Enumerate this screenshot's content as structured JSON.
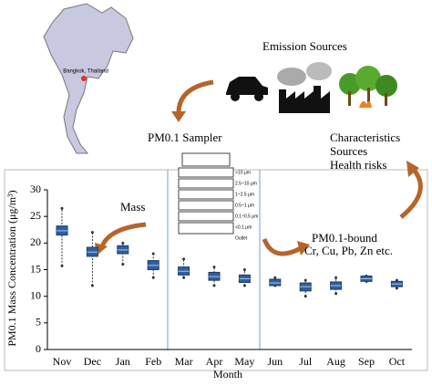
{
  "chart_data": {
    "type": "box",
    "map_label": "Bangkok, Thailand",
    "annotations": [
      "Emission Sources",
      "PM0.1 Sampler",
      "Characteristics",
      "Sources",
      "Health risks",
      "Mass",
      "PM0.1-bound",
      "Cr, Cu, Pb, Zn etc."
    ],
    "sampler_labels": [
      ">10 μm",
      "2.5~10 μm",
      "1~2.5 μm",
      "0.5~1 μm",
      "0.1~0.5 μm",
      "<0.1 μm",
      "Outlet"
    ],
    "y_label": "PM0.1 Mass Concentration (μg/m³)",
    "x_label": "Month",
    "categories": [
      "Nov",
      "Dec",
      "Jan",
      "Feb",
      "Mar",
      "Apr",
      "May",
      "Jun",
      "Jul",
      "Aug",
      "Sep",
      "Oct"
    ],
    "color": "#2f5f9e",
    "min": [
      15.7,
      12,
      16,
      13.5,
      13.5,
      12,
      12,
      12,
      10,
      10.5,
      12.8,
      11.5
    ],
    "q1": [
      21.5,
      17.5,
      18,
      15,
      14,
      13,
      12.6,
      12,
      11,
      11.3,
      12.8,
      11.8
    ],
    "median": [
      22.3,
      18.3,
      18.7,
      15.8,
      14.7,
      13.7,
      13.3,
      12.5,
      11.8,
      12,
      13.3,
      12.3
    ],
    "q3": [
      23.2,
      19.2,
      19.5,
      16.7,
      15.5,
      14.5,
      14,
      13.2,
      12.5,
      12.7,
      13.8,
      12.8
    ],
    "max": [
      26.5,
      22,
      20,
      18,
      17,
      15.5,
      15,
      13.5,
      13,
      13.5,
      13.8,
      13
    ],
    "ylim": [
      0,
      30
    ],
    "yticks": [
      0,
      5,
      10,
      15,
      20,
      25,
      30
    ]
  }
}
